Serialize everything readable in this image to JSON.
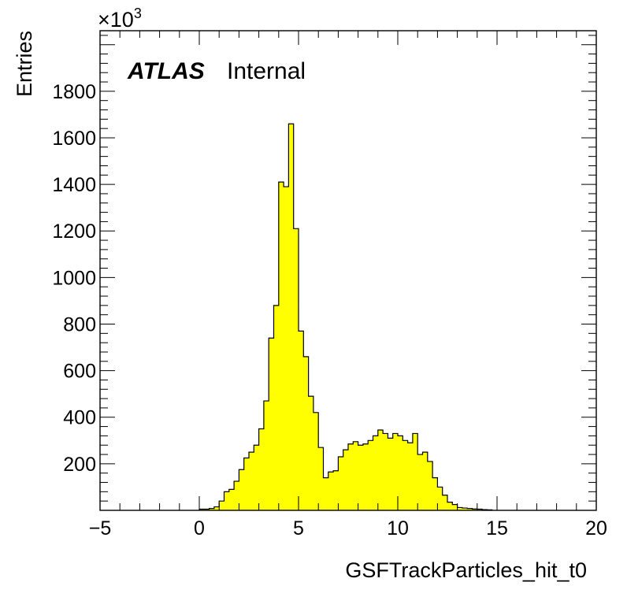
{
  "chart_data": {
    "type": "bar",
    "xlabel": "GSFTrackParticles_hit_t0",
    "ylabel": "Entries",
    "y_multiplier": "×10",
    "y_multiplier_exp": "3",
    "annotation_bold": "ATLAS",
    "annotation_text": "Internal",
    "fill_color": "#ffff00",
    "line_color": "#000000",
    "xlim": [
      -5,
      20
    ],
    "ylim": [
      0,
      2060
    ],
    "bin_width": 0.25,
    "x_ticks": [
      -5,
      0,
      5,
      10,
      15,
      20
    ],
    "x_tick_labels": [
      "−5",
      "0",
      "5",
      "10",
      "15",
      "20"
    ],
    "y_ticks": [
      200,
      400,
      600,
      800,
      1000,
      1200,
      1400,
      1600,
      1800
    ],
    "y_tick_labels": [
      "200",
      "400",
      "600",
      "800",
      "1000",
      "1200",
      "1400",
      "1600",
      "1800"
    ],
    "bin_edges_start": 0,
    "values": [
      5,
      5,
      8,
      15,
      40,
      80,
      90,
      125,
      175,
      225,
      250,
      280,
      350,
      470,
      740,
      880,
      1410,
      1390,
      1660,
      1210,
      770,
      660,
      490,
      420,
      270,
      140,
      165,
      170,
      230,
      260,
      285,
      295,
      280,
      285,
      300,
      320,
      345,
      330,
      310,
      330,
      320,
      300,
      290,
      330,
      240,
      250,
      210,
      140,
      100,
      65,
      35,
      25,
      12,
      10,
      8,
      6,
      5,
      3,
      2
    ]
  }
}
